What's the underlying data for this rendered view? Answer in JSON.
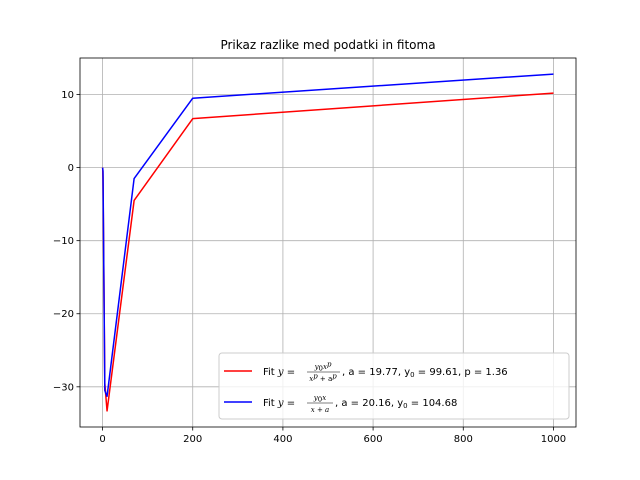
{
  "chart_data": {
    "type": "line",
    "title": "Prikaz razlike med podatki in fitoma",
    "xlabel": "",
    "ylabel": "",
    "xlim": [
      -50,
      1050
    ],
    "ylim": [
      -35.5,
      15
    ],
    "xticks": [
      0,
      200,
      400,
      600,
      800,
      1000
    ],
    "yticks": [
      -30,
      -20,
      -10,
      0,
      10
    ],
    "grid": true,
    "legend_position": "lower right",
    "series": [
      {
        "name": "Fit y=y0x^p/(x^p+a^p), a=19.77, y0=99.61, p=1.36",
        "color": "#ff0000",
        "x": [
          0.1,
          0.5,
          1,
          5,
          10,
          70,
          200,
          1000
        ],
        "y": [
          0,
          -0.3,
          -1.5,
          -29.5,
          -33.3,
          -4.5,
          6.7,
          10.2
        ]
      },
      {
        "name": "Fit y=y0x/(x+a), a=20.16, y0=104.68",
        "color": "#0000ff",
        "x": [
          0.1,
          0.5,
          1,
          5,
          10,
          70,
          200,
          1000
        ],
        "y": [
          0,
          -0.2,
          -0.5,
          -30.5,
          -31.3,
          -1.5,
          9.5,
          12.8
        ]
      }
    ]
  },
  "legend": {
    "entries": [
      {
        "fit_prefix": "Fit ",
        "eq_lhs": "y",
        "eq_sign": " = ",
        "frac_num_main": "y",
        "frac_num_sub": "0",
        "frac_num_x": "x",
        "frac_num_sup": "p",
        "frac_den": "x",
        "frac_den_sup": "p",
        "frac_den_plus": " + a",
        "frac_den_sup2": "p",
        "params": ", a = 19.77, y",
        "params_sub": "0",
        "params_rest": " = 99.61, p = 1.36"
      },
      {
        "fit_prefix": "Fit ",
        "eq_lhs": "y",
        "eq_sign": " = ",
        "frac_num_main": "y",
        "frac_num_sub": "0",
        "frac_num_x": "x",
        "frac_den": "x + a",
        "params": ", a = 20.16, y",
        "params_sub": "0",
        "params_rest": " = 104.68"
      }
    ]
  }
}
